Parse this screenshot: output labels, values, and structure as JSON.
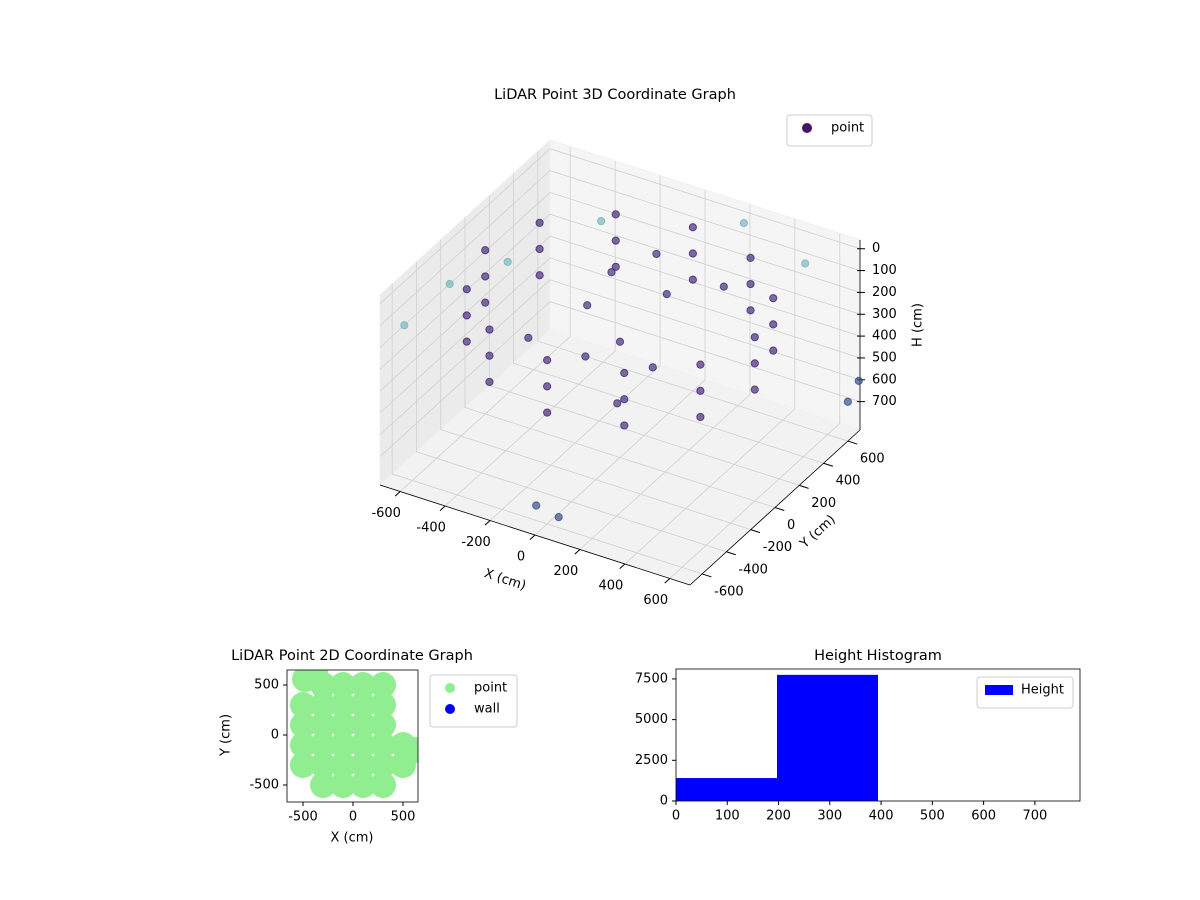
{
  "chart_data": [
    {
      "type": "scatter3d",
      "title": "LiDAR Point 3D Coordinate Graph",
      "xlabel": "X (cm)",
      "ylabel": "Y (cm)",
      "zlabel": "H (cm)",
      "xlim": [
        -690,
        690
      ],
      "ylim": [
        -700,
        700
      ],
      "zlim": [
        830,
        -40
      ],
      "xticks": [
        -600,
        -400,
        -200,
        0,
        200,
        400,
        600
      ],
      "yticks": [
        -600,
        -400,
        -200,
        0,
        200,
        400,
        600
      ],
      "zticks": [
        0,
        100,
        200,
        300,
        400,
        500,
        600,
        700
      ],
      "grid": true,
      "legend": "upper right",
      "series": [
        {
          "name": "point",
          "color": "#471365",
          "x": [
            600,
            520,
            300,
            0,
            -300,
            -520,
            -600,
            -520,
            -300,
            0,
            300,
            520,
            600,
            520,
            300,
            0,
            -300,
            -520,
            -600,
            -520,
            -300,
            0,
            300,
            520,
            600,
            520,
            300,
            0,
            -300,
            -520,
            -600,
            -520,
            -300,
            0,
            300,
            520,
            -200,
            0,
            100,
            -100,
            200,
            -300,
            300,
            0,
            -200,
            150,
            -690,
            -650,
            -500,
            -300,
            200,
            500,
            0,
            100,
            690,
            690
          ],
          "y": [
            0,
            300,
            520,
            600,
            520,
            300,
            0,
            -300,
            -520,
            -600,
            -520,
            -300,
            0,
            300,
            520,
            600,
            520,
            300,
            0,
            -300,
            -520,
            -600,
            -520,
            -300,
            0,
            300,
            520,
            600,
            520,
            300,
            0,
            -300,
            -520,
            -600,
            -520,
            -300,
            100,
            0,
            200,
            -100,
            -100,
            -200,
            300,
            300,
            300,
            -300,
            -500,
            -200,
            0,
            400,
            650,
            600,
            -690,
            -690,
            600,
            690
          ],
          "z": [
            80,
            80,
            80,
            80,
            80,
            80,
            80,
            80,
            80,
            80,
            80,
            80,
            200,
            200,
            200,
            200,
            200,
            200,
            200,
            200,
            200,
            200,
            200,
            200,
            320,
            320,
            320,
            320,
            320,
            320,
            320,
            320,
            320,
            320,
            320,
            320,
            250,
            300,
            150,
            350,
            300,
            280,
            100,
            50,
            200,
            380,
            200,
            150,
            100,
            50,
            20,
            80,
            700,
            720,
            650,
            600
          ],
          "colors": [
            "#472d7b",
            "#472d7b",
            "#472d7b",
            "#472d7b",
            "#472d7b",
            "#472d7b",
            "#472d7b",
            "#472d7b",
            "#472d7b",
            "#472d7b",
            "#472d7b",
            "#472d7b",
            "#472d7b",
            "#472d7b",
            "#472d7b",
            "#472d7b",
            "#472d7b",
            "#472d7b",
            "#472d7b",
            "#472d7b",
            "#472d7b",
            "#472d7b",
            "#472d7b",
            "#472d7b",
            "#472d7b",
            "#472d7b",
            "#472d7b",
            "#472d7b",
            "#472d7b",
            "#472d7b",
            "#472d7b",
            "#472d7b",
            "#472d7b",
            "#472d7b",
            "#472d7b",
            "#472d7b",
            "#46327e",
            "#46327e",
            "#46327e",
            "#46327e",
            "#46327e",
            "#46327e",
            "#46327e",
            "#46327e",
            "#46327e",
            "#46327e",
            "#7ab8bf",
            "#7ab8bf",
            "#7ab8bf",
            "#7ab8bf",
            "#7ab8bf",
            "#7ab8bf",
            "#3b528b",
            "#3b528b",
            "#3b528b",
            "#3b528b"
          ]
        }
      ]
    },
    {
      "type": "scatter",
      "title": "LiDAR Point 2D Coordinate Graph",
      "xlabel": "X (cm)",
      "ylabel": "Y (cm)",
      "xlim": [
        -660,
        650
      ],
      "ylim": [
        -670,
        650
      ],
      "xticks": [
        -500,
        0,
        500
      ],
      "yticks": [
        -500,
        0,
        500
      ],
      "legend": "outside right",
      "series": [
        {
          "name": "point",
          "color": "#90ee90",
          "x": [
            -300,
            -100,
            100,
            300,
            -500,
            -300,
            -100,
            100,
            300,
            -500,
            -300,
            -100,
            100,
            300,
            -500,
            -300,
            -100,
            100,
            300,
            500,
            -500,
            -300,
            -100,
            100,
            300,
            500,
            -300,
            -100,
            100,
            300,
            -480,
            -380,
            620
          ],
          "y": [
            500,
            500,
            500,
            500,
            300,
            300,
            300,
            300,
            300,
            100,
            100,
            100,
            100,
            100,
            -100,
            -100,
            -100,
            -100,
            -100,
            -100,
            -300,
            -300,
            -300,
            -300,
            -300,
            -300,
            -500,
            -500,
            -500,
            -500,
            560,
            640,
            -150
          ]
        },
        {
          "name": "wall",
          "color": "#0000ff",
          "x": [],
          "y": []
        }
      ]
    },
    {
      "type": "histogram",
      "title": "Height Histogram",
      "bins": [
        0,
        197,
        394,
        591,
        788
      ],
      "xlim": [
        0,
        788
      ],
      "ylim": [
        0,
        8110
      ],
      "xticks": [
        0,
        100,
        200,
        300,
        400,
        500,
        600,
        700
      ],
      "yticks": [
        0,
        2500,
        5000,
        7500
      ],
      "legend": "upper right",
      "series": [
        {
          "name": "Height",
          "color": "#0000ff",
          "values": [
            1410,
            7750,
            0,
            0
          ]
        }
      ]
    }
  ]
}
